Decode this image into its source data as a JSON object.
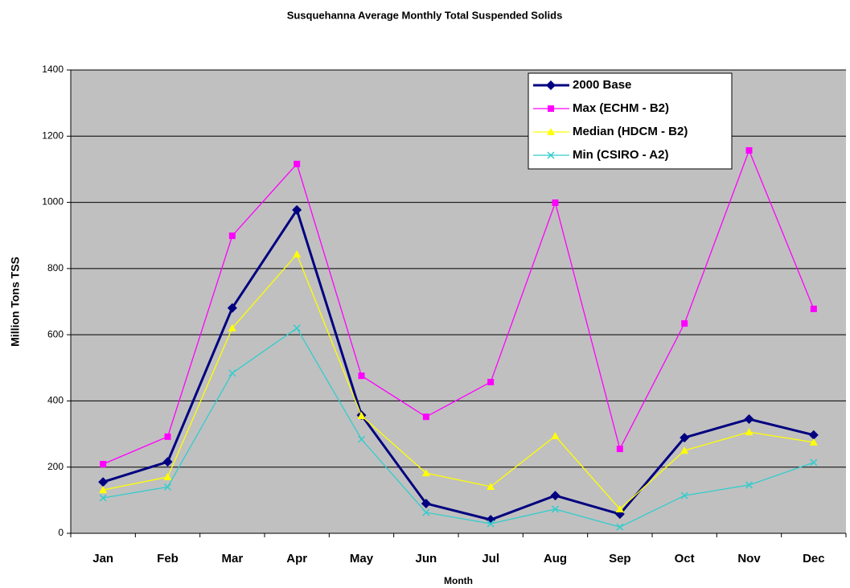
{
  "chart_data": {
    "type": "line",
    "title": "Susquehanna Average Monthly Total Suspended Solids",
    "x_label": "Month",
    "y_label": "Million Tons TSS",
    "categories": [
      "Jan",
      "Feb",
      "Mar",
      "Apr",
      "May",
      "Jun",
      "Jul",
      "Aug",
      "Sep",
      "Oct",
      "Nov",
      "Dec"
    ],
    "series": [
      {
        "name": "2000 Base",
        "color": "#000080",
        "marker": "diamond",
        "values": [
          155,
          216,
          681,
          977,
          357,
          90,
          41,
          114,
          58,
          289,
          345,
          297
        ]
      },
      {
        "name": "Max (ECHM - B2)",
        "color": "#ff00ff",
        "marker": "square",
        "values": [
          209,
          292,
          899,
          1116,
          476,
          352,
          457,
          999,
          255,
          634,
          1157,
          678
        ]
      },
      {
        "name": "Median (HDCM - B2)",
        "color": "#ffff00",
        "marker": "triangle",
        "values": [
          131,
          170,
          620,
          843,
          355,
          182,
          141,
          294,
          73,
          250,
          306,
          275
        ]
      },
      {
        "name": "Min (CSIRO - A2)",
        "color": "#33cccc",
        "marker": "x",
        "values": [
          107,
          140,
          484,
          620,
          284,
          63,
          29,
          73,
          19,
          114,
          146,
          214
        ]
      }
    ],
    "ylim": [
      0,
      1400
    ],
    "yticks": [
      0,
      200,
      400,
      600,
      800,
      1000,
      1200,
      1400
    ],
    "grid": true
  }
}
